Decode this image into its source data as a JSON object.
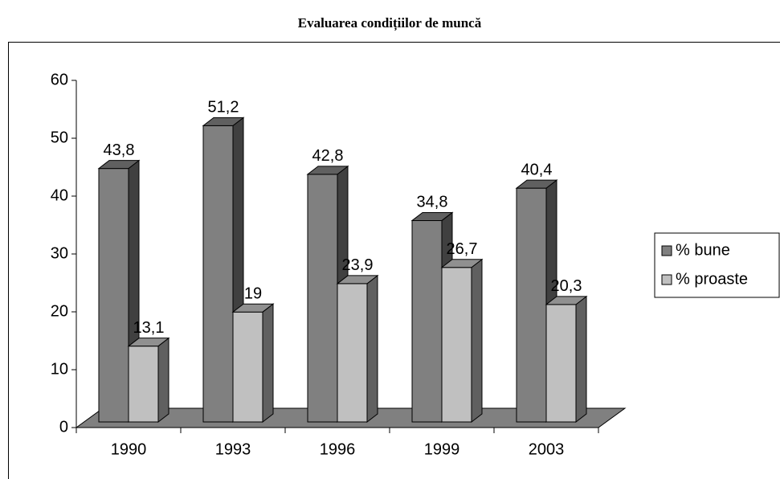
{
  "chart_data": {
    "type": "bar3d",
    "title": "Evaluarea condițiilor de muncă",
    "categories": [
      "1990",
      "1993",
      "1996",
      "1999",
      "2003"
    ],
    "series": [
      {
        "name": "% bune",
        "color": "#808080",
        "values": [
          43.8,
          51.2,
          42.8,
          34.8,
          40.4
        ],
        "value_labels": [
          "43,8",
          "51,2",
          "42,8",
          "34,8",
          "40,4"
        ]
      },
      {
        "name": "% proaste",
        "color": "#c0c0c0",
        "values": [
          13.1,
          19,
          23.9,
          26.7,
          20.3
        ],
        "value_labels": [
          "13,1",
          "19",
          "23,9",
          "26,7",
          "20,3"
        ]
      }
    ],
    "ylim": [
      0,
      60
    ],
    "yticks": [
      0,
      10,
      20,
      30,
      40,
      50,
      60
    ],
    "grid": false,
    "legend": "right"
  }
}
